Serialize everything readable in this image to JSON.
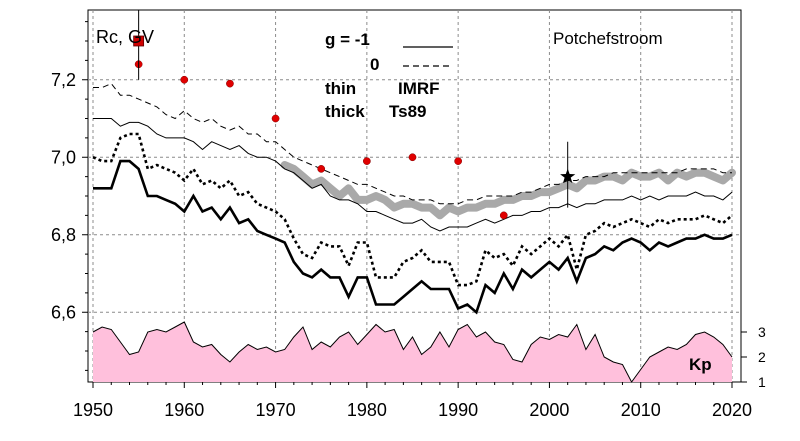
{
  "chart_data": {
    "type": "line",
    "title": "Potchefstroom",
    "ylabel": "Rc, GV",
    "xlabel": "",
    "xlim": [
      1950,
      2022
    ],
    "ylim": [
      6.42,
      7.38
    ],
    "x_ticks": [
      "1950",
      "1960",
      "1970",
      "1980",
      "1990",
      "2000",
      "2010",
      "2020"
    ],
    "y_ticks": [
      "6,6",
      "6,8",
      "7,0",
      "7,2"
    ],
    "y_tick_values": [
      6.6,
      6.8,
      7.0,
      7.2
    ],
    "grid": true,
    "legend_lines": [
      {
        "label": "g  = -1",
        "style": "solid"
      },
      {
        "label": "0",
        "style": "dashed"
      }
    ],
    "legend_models": [
      {
        "width": "thin",
        "model": "IMRF"
      },
      {
        "width": "thick",
        "model": "Ts89"
      }
    ],
    "series": [
      {
        "x": [
          1950,
          1951,
          1952,
          1953,
          1954,
          1955,
          1956,
          1957,
          1958,
          1959,
          1960,
          1961,
          1962,
          1963,
          1964,
          1965,
          1966,
          1967,
          1968,
          1969,
          1970,
          1971,
          1972,
          1973,
          1974,
          1975,
          1976,
          1977,
          1978,
          1979,
          1980,
          1981,
          1982,
          1983,
          1984,
          1985,
          1986,
          1987,
          1988,
          1989,
          1990,
          1991,
          1992,
          1993,
          1994,
          1995,
          1996,
          1997,
          1998,
          1999,
          2000,
          2001,
          2002,
          2003,
          2004,
          2005,
          2006,
          2007,
          2008,
          2009,
          2010,
          2011,
          2012,
          2013,
          2014,
          2015,
          2016,
          2017,
          2018,
          2019,
          2020
        ],
        "values": [
          7.18,
          7.18,
          7.19,
          7.16,
          7.16,
          7.15,
          7.14,
          7.13,
          7.11,
          7.1,
          7.12,
          7.1,
          7.09,
          7.1,
          7.08,
          7.07,
          7.08,
          7.06,
          7.06,
          7.04,
          7.04,
          7.02,
          7.0,
          6.99,
          6.98,
          6.97,
          6.96,
          6.95,
          6.94,
          6.93,
          6.93,
          6.92,
          6.91,
          6.9,
          6.9,
          6.89,
          6.89,
          6.89,
          6.88,
          6.88,
          6.88,
          6.89,
          6.89,
          6.9,
          6.9,
          6.9,
          6.9,
          6.91,
          6.91,
          6.92,
          6.93,
          6.93,
          6.94,
          6.94,
          6.95,
          6.95,
          6.95,
          6.96,
          6.96,
          6.96,
          6.96,
          6.96,
          6.96,
          6.96,
          6.96,
          6.97,
          6.97,
          6.97,
          6.97,
          6.96,
          6.96
        ]
      },
      {
        "x": [
          1950,
          1951,
          1952,
          1953,
          1954,
          1955,
          1956,
          1957,
          1958,
          1959,
          1960,
          1961,
          1962,
          1963,
          1964,
          1965,
          1966,
          1967,
          1968,
          1969,
          1970,
          1971,
          1972,
          1973,
          1974,
          1975,
          1976,
          1977,
          1978,
          1979,
          1980,
          1981,
          1982,
          1983,
          1984,
          1985,
          1986,
          1987,
          1988,
          1989,
          1990,
          1991,
          1992,
          1993,
          1994,
          1995,
          1996,
          1997,
          1998,
          1999,
          2000,
          2001,
          2002,
          2003,
          2004,
          2005,
          2006,
          2007,
          2008,
          2009,
          2010,
          2011,
          2012,
          2013,
          2014,
          2015,
          2016,
          2017,
          2018,
          2019,
          2020
        ],
        "values": [
          7.1,
          7.1,
          7.1,
          7.08,
          7.09,
          7.09,
          7.08,
          7.06,
          7.05,
          7.05,
          7.05,
          7.04,
          7.02,
          7.04,
          7.03,
          7.02,
          7.03,
          7.01,
          7.0,
          7.0,
          6.99,
          6.97,
          6.96,
          6.94,
          6.92,
          6.93,
          6.9,
          6.89,
          6.89,
          6.88,
          6.86,
          6.86,
          6.85,
          6.84,
          6.83,
          6.83,
          6.84,
          6.82,
          6.81,
          6.82,
          6.82,
          6.82,
          6.83,
          6.84,
          6.83,
          6.84,
          6.85,
          6.85,
          6.86,
          6.86,
          6.87,
          6.87,
          6.88,
          6.87,
          6.88,
          6.88,
          6.89,
          6.89,
          6.89,
          6.9,
          6.89,
          6.9,
          6.89,
          6.9,
          6.9,
          6.9,
          6.91,
          6.9,
          6.9,
          6.89,
          6.91
        ]
      },
      {
        "x": [
          1950,
          1951,
          1952,
          1953,
          1954,
          1955,
          1956,
          1957,
          1958,
          1959,
          1960,
          1961,
          1962,
          1963,
          1964,
          1965,
          1966,
          1967,
          1968,
          1969,
          1970,
          1971,
          1972,
          1973,
          1974,
          1975,
          1976,
          1977,
          1978,
          1979,
          1980,
          1981,
          1982,
          1983,
          1984,
          1985,
          1986,
          1987,
          1988,
          1989,
          1990,
          1991,
          1992,
          1993,
          1994,
          1995,
          1996,
          1997,
          1998,
          1999,
          2000,
          2001,
          2002,
          2003,
          2004,
          2005,
          2006,
          2007,
          2008,
          2009,
          2010,
          2011,
          2012,
          2013,
          2014,
          2015,
          2016,
          2017,
          2018,
          2019,
          2020
        ],
        "values": [
          7.0,
          6.99,
          6.99,
          7.05,
          7.06,
          7.06,
          6.97,
          6.98,
          6.97,
          6.96,
          6.94,
          6.97,
          6.93,
          6.94,
          6.92,
          6.94,
          6.9,
          6.91,
          6.88,
          6.87,
          6.86,
          6.84,
          6.79,
          6.75,
          6.74,
          6.78,
          6.77,
          6.77,
          6.72,
          6.78,
          6.78,
          6.69,
          6.69,
          6.69,
          6.73,
          6.74,
          6.76,
          6.73,
          6.73,
          6.73,
          6.67,
          6.67,
          6.68,
          6.76,
          6.74,
          6.75,
          6.72,
          6.77,
          6.75,
          6.77,
          6.79,
          6.77,
          6.8,
          6.71,
          6.8,
          6.81,
          6.83,
          6.82,
          6.83,
          6.84,
          6.83,
          6.82,
          6.84,
          6.83,
          6.84,
          6.84,
          6.84,
          6.85,
          6.84,
          6.83,
          6.85
        ]
      },
      {
        "x": [
          1950,
          1951,
          1952,
          1953,
          1954,
          1955,
          1956,
          1957,
          1958,
          1959,
          1960,
          1961,
          1962,
          1963,
          1964,
          1965,
          1966,
          1967,
          1968,
          1969,
          1970,
          1971,
          1972,
          1973,
          1974,
          1975,
          1976,
          1977,
          1978,
          1979,
          1980,
          1981,
          1982,
          1983,
          1984,
          1985,
          1986,
          1987,
          1988,
          1989,
          1990,
          1991,
          1992,
          1993,
          1994,
          1995,
          1996,
          1997,
          1998,
          1999,
          2000,
          2001,
          2002,
          2003,
          2004,
          2005,
          2006,
          2007,
          2008,
          2009,
          2010,
          2011,
          2012,
          2013,
          2014,
          2015,
          2016,
          2017,
          2018,
          2019,
          2020
        ],
        "values": [
          6.92,
          6.92,
          6.92,
          6.99,
          6.99,
          6.97,
          6.9,
          6.9,
          6.89,
          6.88,
          6.86,
          6.9,
          6.86,
          6.87,
          6.84,
          6.87,
          6.83,
          6.84,
          6.81,
          6.8,
          6.79,
          6.78,
          6.73,
          6.7,
          6.69,
          6.71,
          6.69,
          6.69,
          6.64,
          6.69,
          6.69,
          6.62,
          6.62,
          6.62,
          6.64,
          6.66,
          6.68,
          6.66,
          6.66,
          6.66,
          6.61,
          6.62,
          6.6,
          6.67,
          6.65,
          6.7,
          6.66,
          6.71,
          6.69,
          6.71,
          6.73,
          6.71,
          6.74,
          6.68,
          6.74,
          6.75,
          6.77,
          6.76,
          6.78,
          6.79,
          6.78,
          6.76,
          6.78,
          6.77,
          6.78,
          6.79,
          6.79,
          6.8,
          6.79,
          6.79,
          6.8
        ]
      }
    ],
    "gray_band": {
      "x": [
        1971,
        1972,
        1973,
        1974,
        1975,
        1976,
        1977,
        1978,
        1979,
        1980,
        1981,
        1982,
        1983,
        1984,
        1985,
        1986,
        1987,
        1988,
        1989,
        1990,
        1991,
        1992,
        1993,
        1994,
        1995,
        1996,
        1997,
        1998,
        1999,
        2000,
        2001,
        2002,
        2003,
        2004,
        2005,
        2006,
        2007,
        2008,
        2009,
        2010,
        2011,
        2012,
        2013,
        2014,
        2015,
        2016,
        2017,
        2018,
        2019,
        2020
      ],
      "values": [
        6.98,
        6.97,
        6.95,
        6.93,
        6.94,
        6.92,
        6.9,
        6.92,
        6.89,
        6.89,
        6.9,
        6.89,
        6.87,
        6.88,
        6.88,
        6.87,
        6.87,
        6.85,
        6.87,
        6.86,
        6.87,
        6.87,
        6.88,
        6.88,
        6.89,
        6.89,
        6.9,
        6.9,
        6.91,
        6.91,
        6.92,
        6.93,
        6.92,
        6.94,
        6.94,
        6.95,
        6.95,
        6.94,
        6.96,
        6.95,
        6.95,
        6.96,
        6.94,
        6.96,
        6.95,
        6.96,
        6.96,
        6.95,
        6.94,
        6.96
      ]
    },
    "red_points": {
      "x": [
        1955,
        1960,
        1965,
        1970,
        1975,
        1980,
        1985,
        1990,
        1995
      ],
      "values": [
        7.24,
        7.2,
        7.19,
        7.1,
        6.97,
        6.99,
        7.0,
        6.99,
        6.85
      ]
    },
    "red_square": {
      "x": 1955,
      "value": 7.3
    },
    "star_marker": {
      "x": 2002,
      "value": 6.95
    },
    "kp": {
      "label": "Kp",
      "ticks": [
        "1",
        "2",
        "3"
      ],
      "tick_values": [
        1,
        2,
        3
      ],
      "x": [
        1950,
        1951,
        1952,
        1953,
        1954,
        1955,
        1956,
        1957,
        1958,
        1959,
        1960,
        1961,
        1962,
        1963,
        1964,
        1965,
        1966,
        1967,
        1968,
        1969,
        1970,
        1971,
        1972,
        1973,
        1974,
        1975,
        1976,
        1977,
        1978,
        1979,
        1980,
        1981,
        1982,
        1983,
        1984,
        1985,
        1986,
        1987,
        1988,
        1989,
        1990,
        1991,
        1992,
        1993,
        1994,
        1995,
        1996,
        1997,
        1998,
        1999,
        2000,
        2001,
        2002,
        2003,
        2004,
        2005,
        2006,
        2007,
        2008,
        2009,
        2010,
        2011,
        2012,
        2013,
        2014,
        2015,
        2016,
        2017,
        2018,
        2019,
        2020
      ],
      "values": [
        3.0,
        3.2,
        3.1,
        2.6,
        2.1,
        2.2,
        3.0,
        3.1,
        3.0,
        3.2,
        3.4,
        2.6,
        2.4,
        2.5,
        2.1,
        1.8,
        2.2,
        2.5,
        2.3,
        2.4,
        2.2,
        2.3,
        2.8,
        3.2,
        2.3,
        2.6,
        2.4,
        2.8,
        3.0,
        2.5,
        2.9,
        3.3,
        3.0,
        3.1,
        2.3,
        2.8,
        2.1,
        2.4,
        3.0,
        2.4,
        3.1,
        3.3,
        2.8,
        3.0,
        2.6,
        2.5,
        1.9,
        1.8,
        2.5,
        2.8,
        2.7,
        2.9,
        2.8,
        3.3,
        2.3,
        2.9,
        2.0,
        1.8,
        1.7,
        1.0,
        1.5,
        2.0,
        2.2,
        2.4,
        2.3,
        2.5,
        2.9,
        3.0,
        2.8,
        2.5,
        2.0
      ]
    }
  }
}
